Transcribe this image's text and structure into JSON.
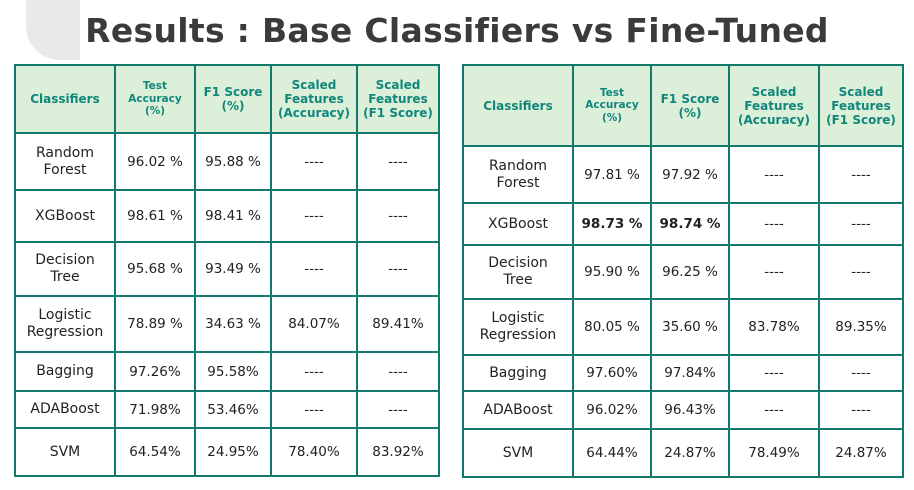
{
  "title": "Results : Base Classifiers vs Fine-Tuned",
  "colors": {
    "accent": "#117a6d",
    "header_bg": "#dcefd9",
    "warning": "#e5625a"
  },
  "headers": [
    {
      "text": "Classifiers",
      "small": false
    },
    {
      "text": "Test\nAccuracy\n(%)",
      "small": true
    },
    {
      "text": "F1 Score\n(%)",
      "small": false
    },
    {
      "text": "Scaled\nFeatures\n(Accuracy)",
      "small": false
    },
    {
      "text": "Scaled\nFeatures\n(F1 Score)",
      "small": false
    }
  ],
  "base_table": {
    "rows": [
      {
        "name": "Random\nForest",
        "acc": "96.02 %",
        "f1": "95.88 %",
        "sacc": "----",
        "sf1": "----",
        "acc_style": "def",
        "f1_style": "def",
        "sacc_style": "dash",
        "sf1_style": "dash"
      },
      {
        "name": "XGBoost",
        "acc": "98.61 %",
        "f1": "98.41 %",
        "sacc": "----",
        "sf1": "----",
        "acc_style": "def",
        "f1_style": "def",
        "sacc_style": "dash",
        "sf1_style": "dash"
      },
      {
        "name": "Decision\nTree",
        "acc": "95.68 %",
        "f1": "93.49 %",
        "sacc": "----",
        "sf1": "----",
        "acc_style": "def",
        "f1_style": "def",
        "sacc_style": "dash",
        "sf1_style": "dash"
      },
      {
        "name": "Logistic\nRegression",
        "acc": "78.89 %",
        "f1": "34.63 %",
        "sacc": "84.07%",
        "sf1": "89.41%",
        "acc_style": "red",
        "f1_style": "red",
        "sacc_style": "teal",
        "sf1_style": "teal"
      },
      {
        "name": "Bagging",
        "acc": "97.26%",
        "f1": "95.58%",
        "sacc": "----",
        "sf1": "----",
        "acc_style": "def",
        "f1_style": "def",
        "sacc_style": "dash",
        "sf1_style": "dash"
      },
      {
        "name": "ADABoost",
        "acc": "71.98%",
        "f1": "53.46%",
        "sacc": "----",
        "sf1": "----",
        "acc_style": "def",
        "f1_style": "def",
        "sacc_style": "dash",
        "sf1_style": "dash"
      },
      {
        "name": "SVM",
        "acc": "64.54%",
        "f1": "24.95%",
        "sacc": "78.40%",
        "sf1": "83.92%",
        "acc_style": "red",
        "f1_style": "red",
        "sacc_style": "teal",
        "sf1_style": "teal"
      }
    ]
  },
  "tuned_table": {
    "rows": [
      {
        "name": "Random\nForest",
        "acc": "97.81 %",
        "f1": "97.92 %",
        "sacc": "----",
        "sf1": "----",
        "acc_style": "teal",
        "f1_style": "teal",
        "sacc_style": "dash",
        "sf1_style": "dash"
      },
      {
        "name": "XGBoost",
        "acc": "98.73 %",
        "f1": "98.74 %",
        "sacc": "----",
        "sf1": "----",
        "acc_style": "bold-teal",
        "f1_style": "bold-teal",
        "sacc_style": "dash",
        "sf1_style": "dash"
      },
      {
        "name": "Decision\nTree",
        "acc": "95.90 %",
        "f1": "96.25 %",
        "sacc": "----",
        "sf1": "----",
        "acc_style": "teal",
        "f1_style": "teal",
        "sacc_style": "dash",
        "sf1_style": "dash"
      },
      {
        "name": "Logistic\nRegression",
        "acc": "80.05 %",
        "f1": "35.60 %",
        "sacc": "83.78%",
        "sf1": "89.35%",
        "acc_style": "teal",
        "f1_style": "teal",
        "sacc_style": "def",
        "sf1_style": "def"
      },
      {
        "name": "Bagging",
        "acc": "97.60%",
        "f1": "97.84%",
        "sacc": "----",
        "sf1": "----",
        "acc_style": "teal",
        "f1_style": "teal",
        "sacc_style": "dash",
        "sf1_style": "dash"
      },
      {
        "name": "ADABoost",
        "acc": "96.02%",
        "f1": "96.43%",
        "sacc": "----",
        "sf1": "----",
        "acc_style": "teal",
        "f1_style": "teal",
        "sacc_style": "dash",
        "sf1_style": "dash"
      },
      {
        "name": "SVM",
        "acc": "64.44%",
        "f1": "24.87%",
        "sacc": "78.49%",
        "sf1": "24.87%",
        "acc_style": "teal",
        "f1_style": "teal",
        "sacc_style": "teal",
        "sf1_style": "teal"
      }
    ]
  }
}
